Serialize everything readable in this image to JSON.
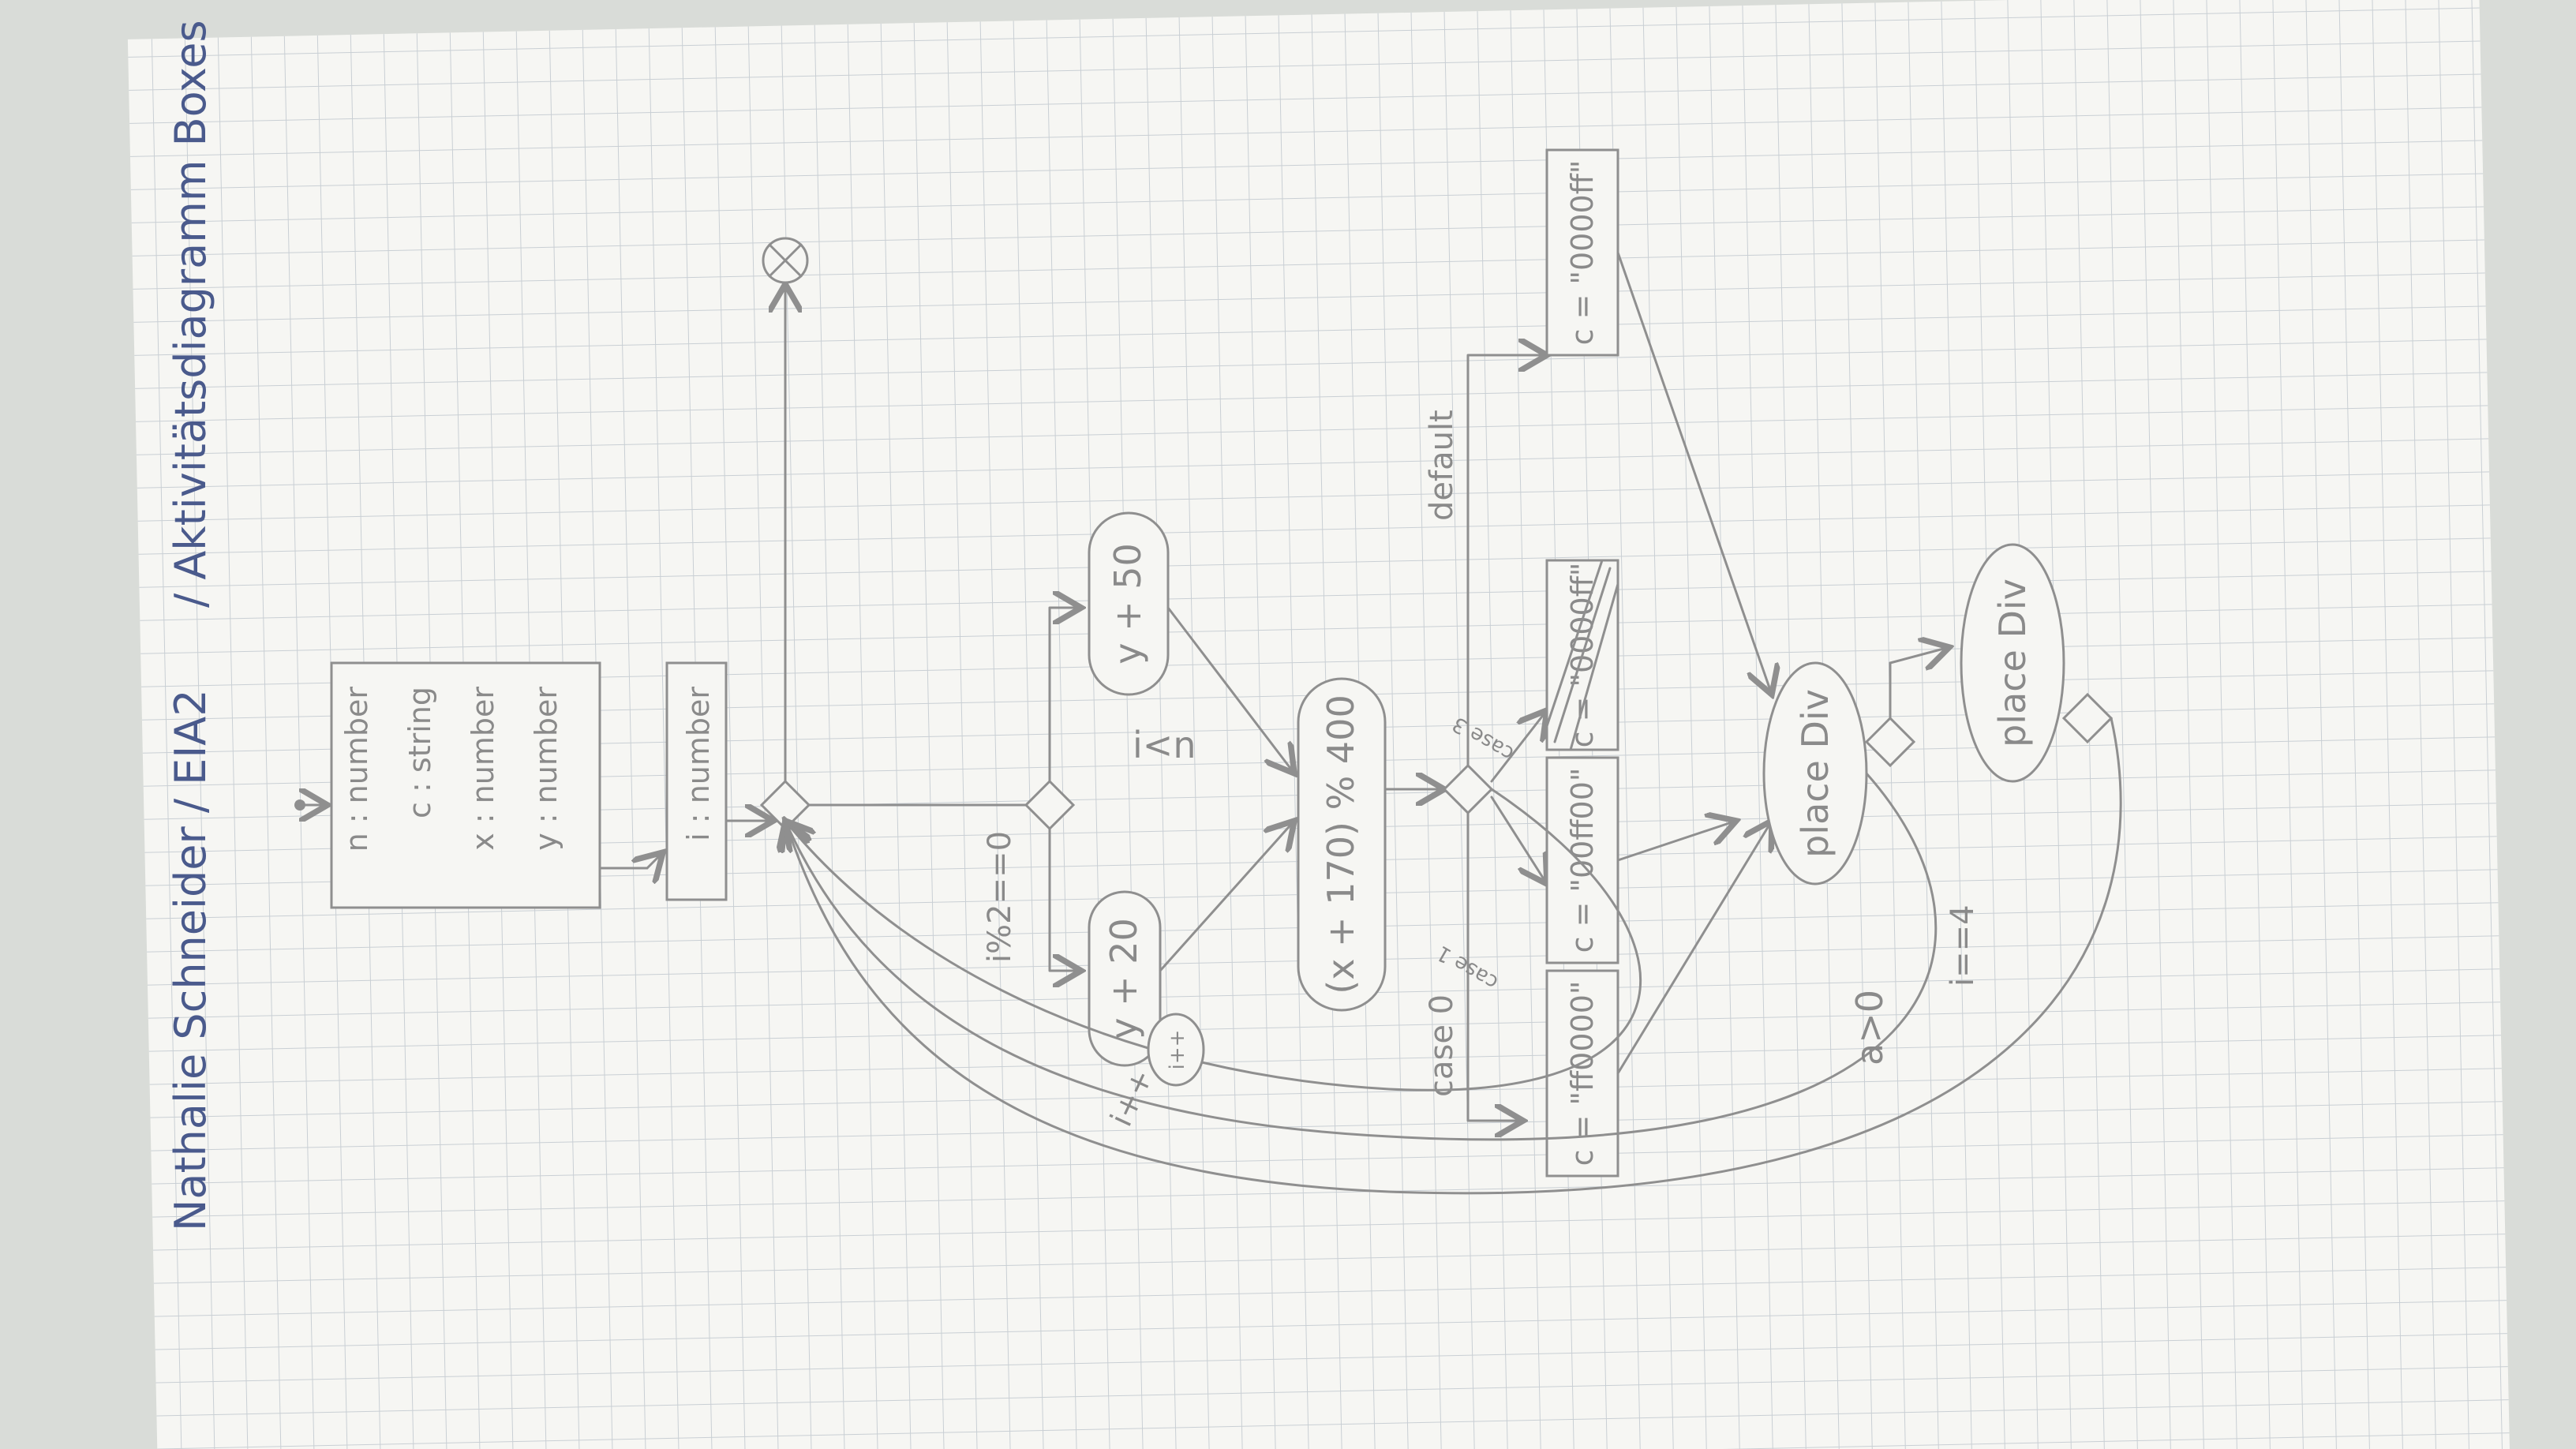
{
  "header": {
    "author": "Nathalie Schneider / EIA2",
    "doc_title": "/ Aktivitätsdiagramm Boxes"
  },
  "variables": {
    "rows": [
      "n : number",
      "c : string",
      "x : number",
      "y : number"
    ]
  },
  "loop_var": {
    "label": "i : number"
  },
  "guards": {
    "loop_cond": "i<n",
    "even_cond": "i%2==0",
    "default": "default",
    "case0": "case 0",
    "case1": "case 1",
    "case3": "case 3",
    "increment_left": "i++",
    "increment_inner": "i++",
    "a_cond": "a>0",
    "i_cond": "i==4"
  },
  "actions": {
    "y20": "y + 20",
    "y50": "y + 50",
    "modulo": "(x + 170) % 400",
    "c_red": "c = \"ff0000\"",
    "c_green": "c = \"00ff00\"",
    "c_blue_struck": "c = \"0000ff\"",
    "c_blue": "c = \"0000ff\"",
    "place_div_1": "place Div",
    "place_div_2": "place Div"
  },
  "colors": {
    "paper": "#f6f6f3",
    "grid": "#c9cfd4",
    "pencil": "#8f8f8f",
    "ink": "#4a5a8c"
  }
}
